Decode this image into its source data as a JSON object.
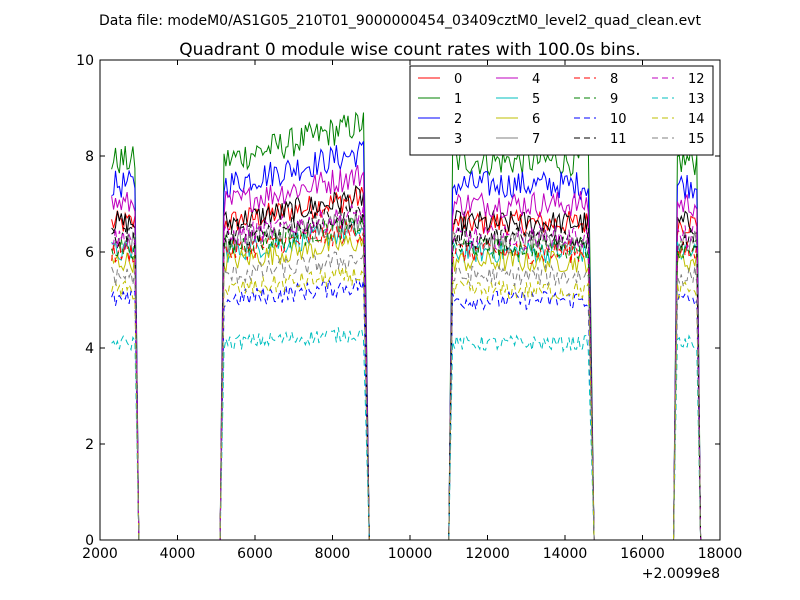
{
  "chart_data": {
    "type": "line",
    "suptitle": "Data file: modeM0/AS1G05_210T01_9000000454_03409cztM0_level2_quad_clean.evt",
    "title": "Quadrant 0 module wise count rates with 100.0s bins.",
    "xlabel": "",
    "ylabel": "",
    "x_offset_label": "+2.0099e8",
    "xlim": [
      2000,
      18000
    ],
    "ylim": [
      0,
      10
    ],
    "xticks": [
      2000,
      4000,
      6000,
      8000,
      10000,
      12000,
      14000,
      16000,
      18000
    ],
    "yticks": [
      0,
      2,
      4,
      6,
      8,
      10
    ],
    "grid": false,
    "legend_position": "top-right",
    "legend_columns": 4,
    "segments": [
      {
        "start": 2300,
        "end": 2900
      },
      {
        "start": 5200,
        "end": 8800
      },
      {
        "start": 11100,
        "end": 14600
      },
      {
        "start": 16900,
        "end": 17400
      }
    ],
    "drop_end": [
      3000,
      8950,
      14750,
      17500
    ],
    "gaps": [
      [
        3100,
        5100
      ],
      [
        9000,
        11000
      ],
      [
        14800,
        16800
      ]
    ],
    "series": [
      {
        "name": "0",
        "color": "#ff0000",
        "dash": "solid",
        "level": 6.6
      },
      {
        "name": "1",
        "color": "#008000",
        "dash": "solid",
        "level": 7.9
      },
      {
        "name": "2",
        "color": "#0000ff",
        "dash": "solid",
        "level": 7.4
      },
      {
        "name": "3",
        "color": "#000000",
        "dash": "solid",
        "level": 6.6
      },
      {
        "name": "4",
        "color": "#bf00bf",
        "dash": "solid",
        "level": 7.0
      },
      {
        "name": "5",
        "color": "#00bfbf",
        "dash": "solid",
        "level": 6.0
      },
      {
        "name": "6",
        "color": "#bfbf00",
        "dash": "solid",
        "level": 5.8
      },
      {
        "name": "7",
        "color": "#808080",
        "dash": "solid",
        "level": 6.2
      },
      {
        "name": "8",
        "color": "#ff0000",
        "dash": "dashed",
        "level": 6.0
      },
      {
        "name": "9",
        "color": "#008000",
        "dash": "dashed",
        "level": 6.1
      },
      {
        "name": "10",
        "color": "#0000ff",
        "dash": "dashed",
        "level": 5.0
      },
      {
        "name": "11",
        "color": "#000000",
        "dash": "dashed",
        "level": 6.3
      },
      {
        "name": "12",
        "color": "#bf00bf",
        "dash": "dashed",
        "level": 6.3
      },
      {
        "name": "13",
        "color": "#00bfbf",
        "dash": "dashed",
        "level": 4.1
      },
      {
        "name": "14",
        "color": "#bfbf00",
        "dash": "dashed",
        "level": 5.2
      },
      {
        "name": "15",
        "color": "#808080",
        "dash": "dashed",
        "level": 5.5
      }
    ]
  }
}
